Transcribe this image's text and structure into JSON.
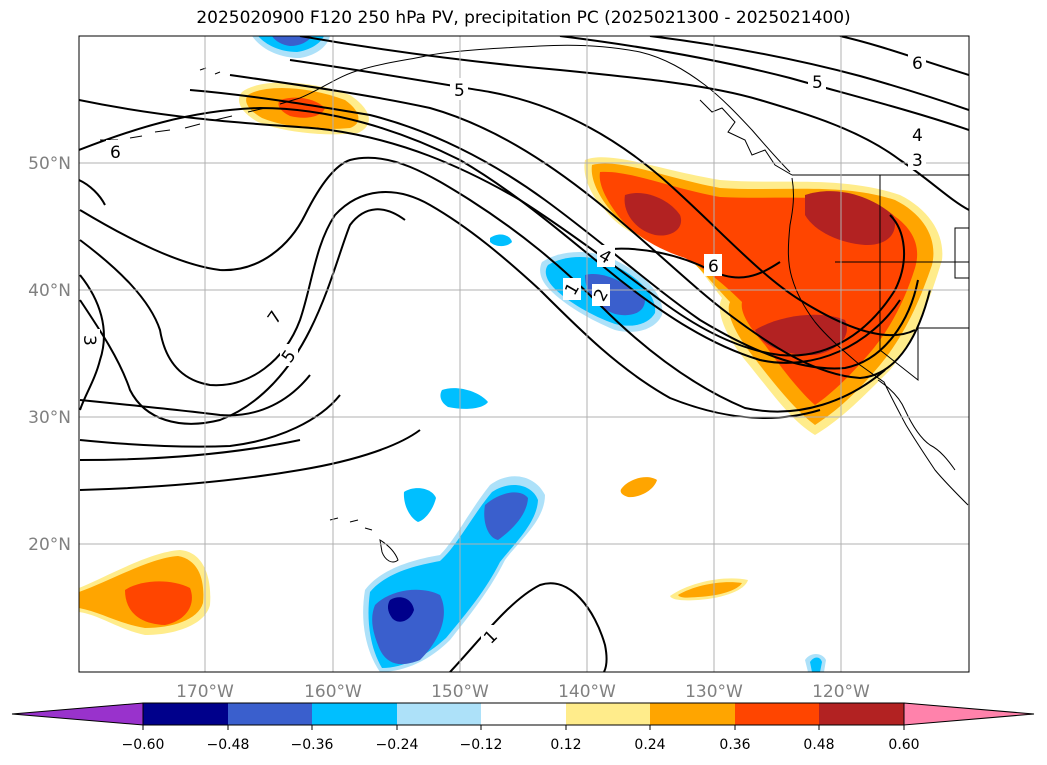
{
  "title": "2025020900 F120 250 hPa PV, precipitation PC (2025021300 - 2025021400)",
  "map": {
    "lon_ticks": [
      "170°W",
      "160°W",
      "150°W",
      "140°W",
      "130°W",
      "120°W"
    ],
    "lat_ticks": [
      "50°N",
      "40°N",
      "30°N",
      "20°N"
    ],
    "contour_labels": [
      "6",
      "5",
      "6",
      "4",
      "3",
      "6",
      "7",
      "5",
      "3",
      "4",
      "1",
      "2",
      "1",
      "7"
    ]
  },
  "colorbar": {
    "tick_labels": [
      "−0.60",
      "−0.48",
      "−0.36",
      "−0.24",
      "−0.12",
      "0.12",
      "0.24",
      "0.36",
      "0.48",
      "0.60"
    ],
    "colors": [
      "#9932CC",
      "#00008B",
      "#3A5FCD",
      "#00BFFF",
      "#ADE1F9",
      "#FFFFFF",
      "#FFEC8B",
      "#FFA500",
      "#FF4500",
      "#B22222",
      "#FF82AB"
    ]
  }
}
